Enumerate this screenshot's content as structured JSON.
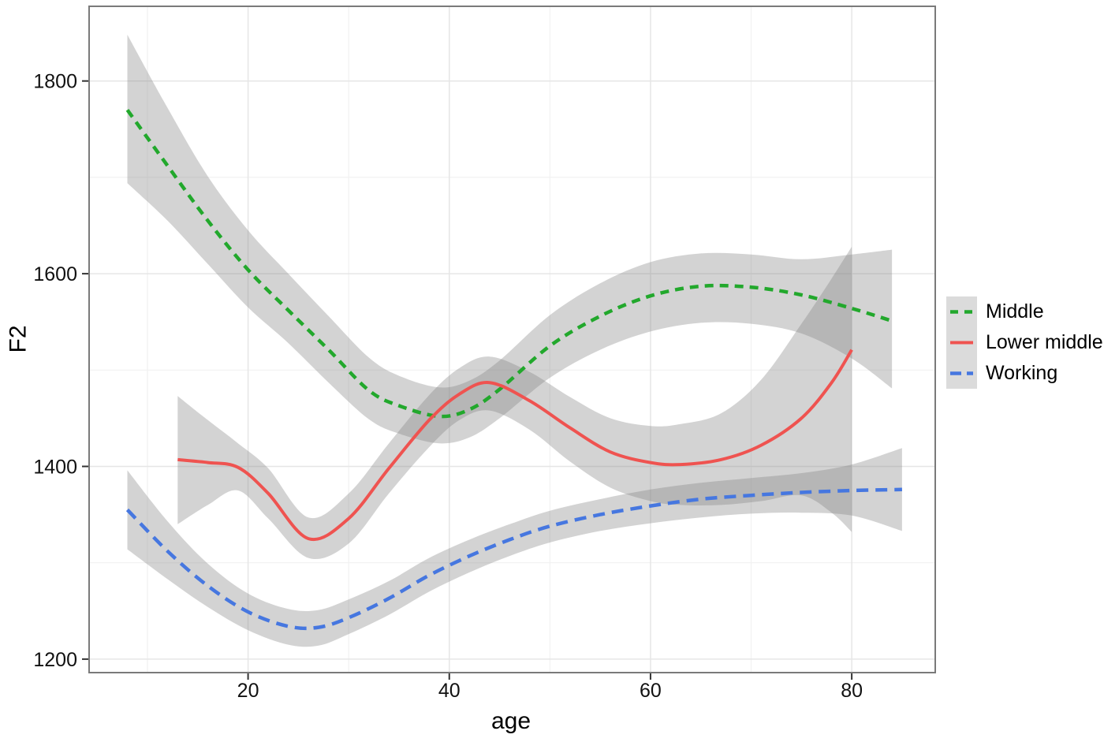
{
  "figure": {
    "background": "#ffffff",
    "panel_border_color": "#7A7A7A",
    "major_grid_color": "#E6E6E6",
    "minor_grid_color": "#F1F1F1",
    "tick_color": "#333333",
    "tick_label_color": "#111111"
  },
  "chart_data": {
    "type": "line",
    "title": "",
    "xlabel": "age",
    "ylabel": "F2",
    "xlim": [
      4.2,
      88.3
    ],
    "ylim": [
      1186,
      1877.5
    ],
    "x_ticks": [
      20,
      40,
      60,
      80
    ],
    "y_ticks": [
      1200,
      1400,
      1600,
      1800
    ],
    "x_minor_ticks": [
      10,
      30,
      50,
      70
    ],
    "y_minor_ticks": [
      1300,
      1500,
      1700
    ],
    "grid": "on",
    "legend_position": "right",
    "confidence_band_color": "rgba(130,130,130,0.35)",
    "series": [
      {
        "name": "Middle",
        "color": "#22A82C",
        "line_style": "dashed",
        "stroke_width": 4.5,
        "dasharray": "11 8",
        "key_dasharray": "10 8",
        "points": [
          {
            "x": 8,
            "y": 1770,
            "lo": 1694,
            "hi": 1848
          },
          {
            "x": 12,
            "y": 1712,
            "lo": 1655,
            "hi": 1772
          },
          {
            "x": 16,
            "y": 1655,
            "lo": 1610,
            "hi": 1701
          },
          {
            "x": 20,
            "y": 1604,
            "lo": 1565,
            "hi": 1645
          },
          {
            "x": 24,
            "y": 1562,
            "lo": 1528,
            "hi": 1600
          },
          {
            "x": 28,
            "y": 1521,
            "lo": 1487,
            "hi": 1556
          },
          {
            "x": 32,
            "y": 1479,
            "lo": 1449,
            "hi": 1513
          },
          {
            "x": 35,
            "y": 1463,
            "lo": 1434,
            "hi": 1494
          },
          {
            "x": 39,
            "y": 1452,
            "lo": 1424,
            "hi": 1482
          },
          {
            "x": 42,
            "y": 1459,
            "lo": 1430,
            "hi": 1489
          },
          {
            "x": 45,
            "y": 1480,
            "lo": 1450,
            "hi": 1510
          },
          {
            "x": 50,
            "y": 1525,
            "lo": 1492,
            "hi": 1557
          },
          {
            "x": 55,
            "y": 1556,
            "lo": 1521,
            "hi": 1590
          },
          {
            "x": 60,
            "y": 1577,
            "lo": 1540,
            "hi": 1612
          },
          {
            "x": 65,
            "y": 1587,
            "lo": 1549,
            "hi": 1621
          },
          {
            "x": 70,
            "y": 1586,
            "lo": 1548,
            "hi": 1620
          },
          {
            "x": 75,
            "y": 1578,
            "lo": 1538,
            "hi": 1615
          },
          {
            "x": 80,
            "y": 1564,
            "lo": 1512,
            "hi": 1620
          },
          {
            "x": 84,
            "y": 1551,
            "lo": 1481,
            "hi": 1625
          }
        ]
      },
      {
        "name": "Lower middle",
        "color": "#EF5350",
        "line_style": "solid",
        "stroke_width": 4,
        "dasharray": "",
        "key_dasharray": "",
        "points": [
          {
            "x": 13,
            "y": 1407,
            "lo": 1340,
            "hi": 1473
          },
          {
            "x": 16,
            "y": 1404,
            "lo": 1360,
            "hi": 1448
          },
          {
            "x": 19,
            "y": 1399,
            "lo": 1375,
            "hi": 1424
          },
          {
            "x": 22,
            "y": 1372,
            "lo": 1346,
            "hi": 1398
          },
          {
            "x": 26,
            "y": 1325,
            "lo": 1305,
            "hi": 1347
          },
          {
            "x": 30,
            "y": 1346,
            "lo": 1320,
            "hi": 1372
          },
          {
            "x": 34,
            "y": 1398,
            "lo": 1372,
            "hi": 1424
          },
          {
            "x": 38,
            "y": 1448,
            "lo": 1420,
            "hi": 1474
          },
          {
            "x": 41,
            "y": 1475,
            "lo": 1448,
            "hi": 1502
          },
          {
            "x": 44,
            "y": 1487,
            "lo": 1458,
            "hi": 1514
          },
          {
            "x": 48,
            "y": 1468,
            "lo": 1438,
            "hi": 1498
          },
          {
            "x": 52,
            "y": 1440,
            "lo": 1405,
            "hi": 1472
          },
          {
            "x": 56,
            "y": 1415,
            "lo": 1378,
            "hi": 1450
          },
          {
            "x": 60,
            "y": 1404,
            "lo": 1364,
            "hi": 1442
          },
          {
            "x": 63,
            "y": 1402,
            "lo": 1360,
            "hi": 1444
          },
          {
            "x": 67,
            "y": 1407,
            "lo": 1360,
            "hi": 1455
          },
          {
            "x": 71,
            "y": 1422,
            "lo": 1364,
            "hi": 1490
          },
          {
            "x": 75,
            "y": 1450,
            "lo": 1370,
            "hi": 1548
          },
          {
            "x": 78,
            "y": 1487,
            "lo": 1352,
            "hi": 1595
          },
          {
            "x": 80,
            "y": 1521,
            "lo": 1332,
            "hi": 1628
          }
        ]
      },
      {
        "name": "Working",
        "color": "#4677E0",
        "line_style": "long-dash",
        "stroke_width": 4.5,
        "dasharray": "15 9",
        "key_dasharray": "14 7",
        "points": [
          {
            "x": 8,
            "y": 1355,
            "lo": 1314,
            "hi": 1396
          },
          {
            "x": 12,
            "y": 1312,
            "lo": 1283,
            "hi": 1343
          },
          {
            "x": 16,
            "y": 1276,
            "lo": 1254,
            "hi": 1299
          },
          {
            "x": 20,
            "y": 1249,
            "lo": 1230,
            "hi": 1268
          },
          {
            "x": 24,
            "y": 1234,
            "lo": 1215,
            "hi": 1252
          },
          {
            "x": 27,
            "y": 1233,
            "lo": 1214,
            "hi": 1251
          },
          {
            "x": 30,
            "y": 1243,
            "lo": 1226,
            "hi": 1262
          },
          {
            "x": 34,
            "y": 1263,
            "lo": 1246,
            "hi": 1281
          },
          {
            "x": 38,
            "y": 1287,
            "lo": 1270,
            "hi": 1305
          },
          {
            "x": 42,
            "y": 1307,
            "lo": 1290,
            "hi": 1324
          },
          {
            "x": 46,
            "y": 1324,
            "lo": 1307,
            "hi": 1340
          },
          {
            "x": 50,
            "y": 1338,
            "lo": 1321,
            "hi": 1354
          },
          {
            "x": 55,
            "y": 1350,
            "lo": 1333,
            "hi": 1366
          },
          {
            "x": 60,
            "y": 1359,
            "lo": 1341,
            "hi": 1376
          },
          {
            "x": 65,
            "y": 1366,
            "lo": 1347,
            "hi": 1383
          },
          {
            "x": 70,
            "y": 1370,
            "lo": 1351,
            "hi": 1388
          },
          {
            "x": 75,
            "y": 1373,
            "lo": 1352,
            "hi": 1393
          },
          {
            "x": 80,
            "y": 1375,
            "lo": 1349,
            "hi": 1402
          },
          {
            "x": 85,
            "y": 1376,
            "lo": 1333,
            "hi": 1419
          }
        ]
      }
    ]
  }
}
